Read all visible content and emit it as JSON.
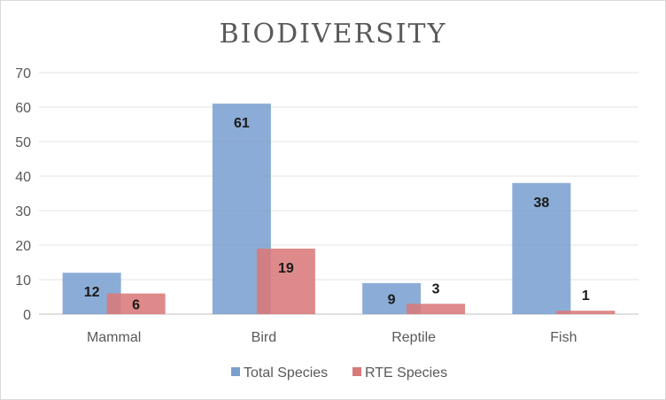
{
  "chart_data": {
    "type": "bar",
    "title": "BIODIVERSITY",
    "categories": [
      "Mammal",
      "Bird",
      "Reptile",
      "Fish"
    ],
    "series": [
      {
        "name": "Total Species",
        "values": [
          12,
          61,
          9,
          38
        ],
        "color": "#7ba0d0"
      },
      {
        "name": "RTE Species",
        "values": [
          6,
          19,
          3,
          1
        ],
        "color": "#d97a7a"
      }
    ],
    "ylim": [
      0,
      70
    ],
    "yticks": [
      0,
      10,
      20,
      30,
      40,
      50,
      60,
      70
    ],
    "grid": true,
    "legend": "bottom"
  }
}
